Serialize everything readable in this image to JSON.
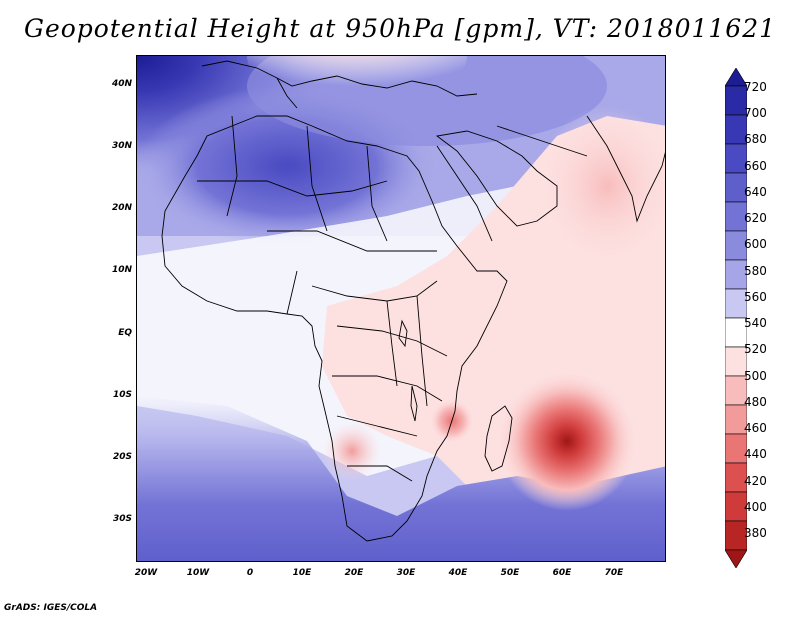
{
  "title": "Geopotential Height at 950hPa [gpm], VT: 2018011621",
  "credit": "GrADS: IGES/COLA",
  "lat_ticks": [
    "40N",
    "30N",
    "20N",
    "10N",
    "EQ",
    "10S",
    "20S",
    "30S"
  ],
  "lon_ticks": [
    "20W",
    "10W",
    "0",
    "10E",
    "20E",
    "30E",
    "40E",
    "50E",
    "60E",
    "70E"
  ],
  "colorbar": {
    "levels": [
      "720",
      "700",
      "680",
      "660",
      "640",
      "620",
      "600",
      "580",
      "560",
      "540",
      "520",
      "500",
      "480",
      "460",
      "440",
      "420",
      "400",
      "380"
    ],
    "colors": [
      "#1c1c94",
      "#2a2aa6",
      "#3838b4",
      "#4a4ac2",
      "#5f5fcc",
      "#7373d6",
      "#8b8bde",
      "#a5a5e8",
      "#c8c8f2",
      "#ffffff",
      "#fde0e0",
      "#f8bcbc",
      "#f29b9b",
      "#ea7575",
      "#dc5050",
      "#cf3a3a",
      "#b82525",
      "#a01616"
    ]
  },
  "map": {
    "ocean_color": "#c8c8f2",
    "high_color": "#3838b4",
    "low_color": "#b82525",
    "land_outline": "#000000"
  }
}
